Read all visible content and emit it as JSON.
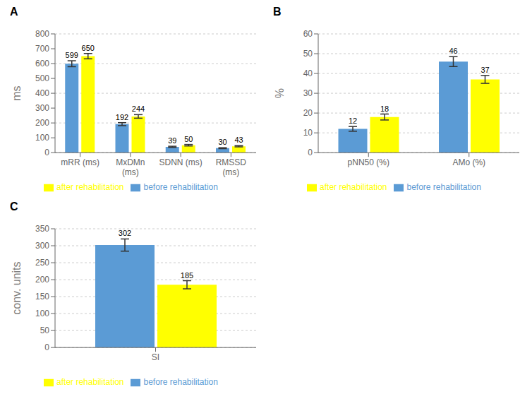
{
  "chart_data": [
    {
      "type": "bar",
      "title": "A",
      "categories": [
        "mRR (ms)",
        "MxDMn\n(ms)",
        "SDNN (ms)",
        "RMSSD\n(ms)"
      ],
      "series": [
        {
          "name": "before rehabilitation",
          "color": "#5B9BD5",
          "values": [
            599,
            192,
            39,
            30
          ],
          "errors": [
            20,
            10,
            4,
            3
          ]
        },
        {
          "name": "after rehabilitation",
          "color": "#FFFF00",
          "values": [
            650,
            244,
            50,
            43
          ],
          "errors": [
            18,
            12,
            5,
            4
          ]
        }
      ],
      "ylabel": "ms",
      "ylim": [
        0,
        800
      ],
      "yticks": [
        0,
        100,
        200,
        300,
        400,
        500,
        600,
        700,
        800
      ],
      "grid": true,
      "legend": "bottom",
      "data_labels": true
    },
    {
      "type": "bar",
      "title": "B",
      "categories": [
        "pNN50 (%)",
        "AMo (%)"
      ],
      "series": [
        {
          "name": "before rehabilitation",
          "color": "#5B9BD5",
          "values": [
            12,
            46
          ],
          "errors": [
            1.2,
            2.5
          ]
        },
        {
          "name": "after rehabilitation",
          "color": "#FFFF00",
          "values": [
            18,
            37
          ],
          "errors": [
            1.5,
            2.0
          ]
        }
      ],
      "ylabel": "%",
      "ylim": [
        0,
        60
      ],
      "yticks": [
        0,
        10,
        20,
        30,
        40,
        50,
        60
      ],
      "grid": true,
      "legend": "bottom",
      "data_labels": true
    },
    {
      "type": "bar",
      "title": "C",
      "categories": [
        "SI"
      ],
      "series": [
        {
          "name": "before rehabilitation",
          "color": "#5B9BD5",
          "values": [
            302
          ],
          "errors": [
            18
          ]
        },
        {
          "name": "after rehabilitation",
          "color": "#FFFF00",
          "values": [
            185
          ],
          "errors": [
            12
          ]
        }
      ],
      "ylabel": "conv. units",
      "ylim": [
        0,
        350
      ],
      "yticks": [
        0,
        50,
        100,
        150,
        200,
        250,
        300,
        350
      ],
      "grid": true,
      "legend": "bottom",
      "data_labels": true
    }
  ]
}
